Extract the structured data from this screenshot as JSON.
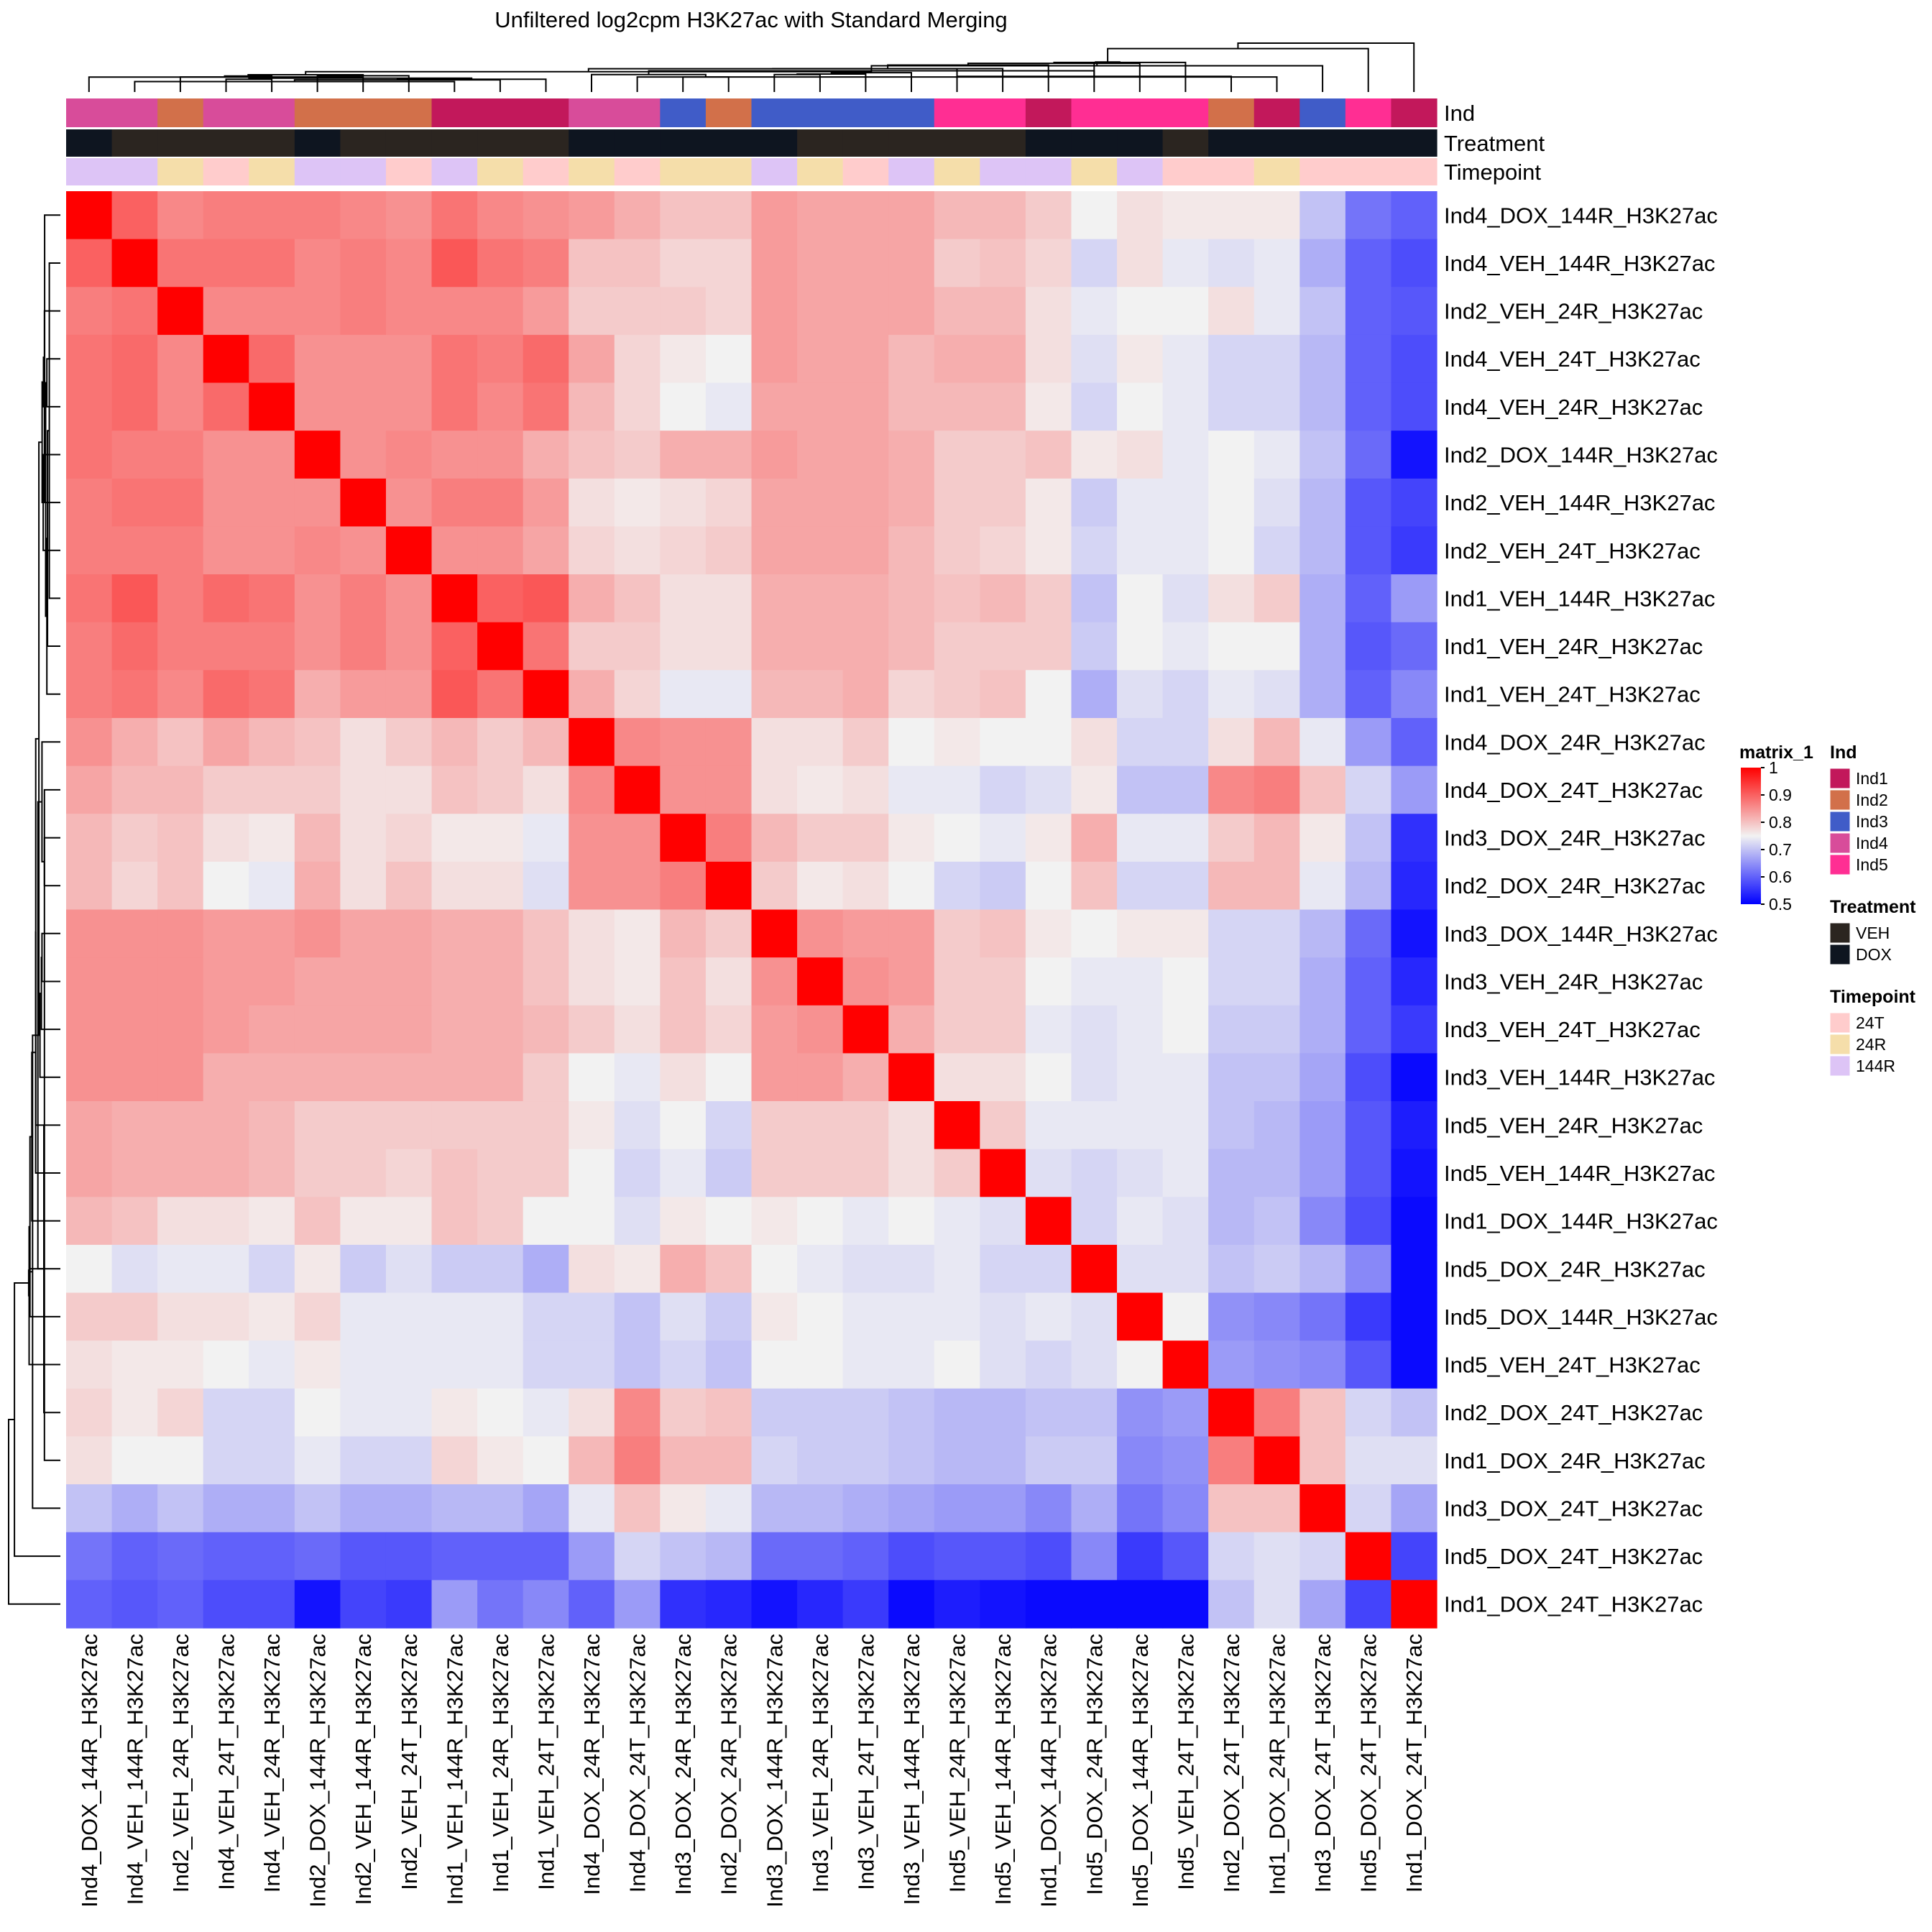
{
  "chart_data": {
    "type": "heatmap",
    "title": "Unfiltered log2cpm H3K27ac with Standard Merging",
    "labels": [
      "Ind4_DOX_144R_H3K27ac",
      "Ind4_VEH_144R_H3K27ac",
      "Ind2_VEH_24R_H3K27ac",
      "Ind4_VEH_24T_H3K27ac",
      "Ind4_VEH_24R_H3K27ac",
      "Ind2_DOX_144R_H3K27ac",
      "Ind2_VEH_144R_H3K27ac",
      "Ind2_VEH_24T_H3K27ac",
      "Ind1_VEH_144R_H3K27ac",
      "Ind1_VEH_24R_H3K27ac",
      "Ind1_VEH_24T_H3K27ac",
      "Ind4_DOX_24R_H3K27ac",
      "Ind4_DOX_24T_H3K27ac",
      "Ind3_DOX_24R_H3K27ac",
      "Ind2_DOX_24R_H3K27ac",
      "Ind3_DOX_144R_H3K27ac",
      "Ind3_VEH_24R_H3K27ac",
      "Ind3_VEH_24T_H3K27ac",
      "Ind3_VEH_144R_H3K27ac",
      "Ind5_VEH_24R_H3K27ac",
      "Ind5_VEH_144R_H3K27ac",
      "Ind1_DOX_144R_H3K27ac",
      "Ind5_DOX_24R_H3K27ac",
      "Ind5_DOX_144R_H3K27ac",
      "Ind5_VEH_24T_H3K27ac",
      "Ind2_DOX_24T_H3K27ac",
      "Ind1_DOX_24R_H3K27ac",
      "Ind3_DOX_24T_H3K27ac",
      "Ind5_DOX_24T_H3K27ac",
      "Ind1_DOX_24T_H3K27ac"
    ],
    "matrix": [
      [
        1.0,
        0.9,
        0.86,
        0.87,
        0.87,
        0.87,
        0.86,
        0.85,
        0.88,
        0.86,
        0.85,
        0.84,
        0.82,
        0.8,
        0.8,
        0.84,
        0.83,
        0.83,
        0.83,
        0.81,
        0.81,
        0.79,
        0.75,
        0.77,
        0.76,
        0.76,
        0.76,
        0.7,
        0.62,
        0.6
      ],
      [
        0.9,
        1.0,
        0.88,
        0.88,
        0.88,
        0.86,
        0.87,
        0.86,
        0.91,
        0.88,
        0.87,
        0.8,
        0.8,
        0.78,
        0.78,
        0.84,
        0.83,
        0.83,
        0.83,
        0.79,
        0.8,
        0.78,
        0.72,
        0.77,
        0.74,
        0.73,
        0.74,
        0.68,
        0.6,
        0.58
      ],
      [
        0.87,
        0.88,
        1.0,
        0.86,
        0.86,
        0.86,
        0.87,
        0.86,
        0.86,
        0.86,
        0.84,
        0.79,
        0.79,
        0.79,
        0.78,
        0.84,
        0.83,
        0.83,
        0.83,
        0.81,
        0.81,
        0.77,
        0.74,
        0.75,
        0.75,
        0.77,
        0.74,
        0.7,
        0.6,
        0.59
      ],
      [
        0.88,
        0.89,
        0.86,
        1.0,
        0.89,
        0.85,
        0.85,
        0.85,
        0.88,
        0.87,
        0.89,
        0.83,
        0.78,
        0.76,
        0.75,
        0.84,
        0.83,
        0.83,
        0.81,
        0.82,
        0.82,
        0.77,
        0.73,
        0.76,
        0.74,
        0.72,
        0.72,
        0.69,
        0.6,
        0.58
      ],
      [
        0.88,
        0.89,
        0.86,
        0.89,
        1.0,
        0.85,
        0.85,
        0.85,
        0.88,
        0.86,
        0.88,
        0.81,
        0.78,
        0.75,
        0.74,
        0.83,
        0.83,
        0.83,
        0.81,
        0.81,
        0.81,
        0.76,
        0.72,
        0.75,
        0.74,
        0.72,
        0.72,
        0.69,
        0.6,
        0.58
      ],
      [
        0.88,
        0.87,
        0.87,
        0.85,
        0.85,
        1.0,
        0.85,
        0.86,
        0.85,
        0.85,
        0.82,
        0.8,
        0.79,
        0.82,
        0.82,
        0.84,
        0.83,
        0.83,
        0.82,
        0.79,
        0.79,
        0.8,
        0.76,
        0.77,
        0.74,
        0.75,
        0.74,
        0.7,
        0.61,
        0.52
      ],
      [
        0.87,
        0.88,
        0.88,
        0.85,
        0.85,
        0.85,
        1.0,
        0.85,
        0.87,
        0.87,
        0.84,
        0.77,
        0.76,
        0.77,
        0.78,
        0.83,
        0.83,
        0.83,
        0.82,
        0.79,
        0.79,
        0.76,
        0.71,
        0.74,
        0.74,
        0.75,
        0.73,
        0.69,
        0.59,
        0.57
      ],
      [
        0.87,
        0.87,
        0.87,
        0.85,
        0.85,
        0.86,
        0.85,
        1.0,
        0.85,
        0.85,
        0.83,
        0.78,
        0.77,
        0.78,
        0.79,
        0.83,
        0.83,
        0.83,
        0.81,
        0.79,
        0.78,
        0.76,
        0.72,
        0.74,
        0.74,
        0.75,
        0.72,
        0.69,
        0.59,
        0.56
      ],
      [
        0.88,
        0.91,
        0.87,
        0.89,
        0.88,
        0.85,
        0.87,
        0.85,
        1.0,
        0.9,
        0.91,
        0.82,
        0.8,
        0.77,
        0.77,
        0.82,
        0.82,
        0.82,
        0.81,
        0.8,
        0.81,
        0.79,
        0.7,
        0.75,
        0.73,
        0.77,
        0.79,
        0.68,
        0.6,
        0.66
      ],
      [
        0.87,
        0.89,
        0.87,
        0.87,
        0.87,
        0.85,
        0.87,
        0.85,
        0.9,
        1.0,
        0.88,
        0.79,
        0.79,
        0.77,
        0.77,
        0.82,
        0.82,
        0.82,
        0.81,
        0.79,
        0.79,
        0.79,
        0.71,
        0.75,
        0.74,
        0.75,
        0.75,
        0.68,
        0.59,
        0.61
      ],
      [
        0.87,
        0.88,
        0.86,
        0.89,
        0.88,
        0.82,
        0.84,
        0.84,
        0.91,
        0.88,
        1.0,
        0.82,
        0.78,
        0.74,
        0.74,
        0.81,
        0.81,
        0.82,
        0.78,
        0.79,
        0.8,
        0.75,
        0.68,
        0.73,
        0.72,
        0.74,
        0.73,
        0.68,
        0.6,
        0.64
      ],
      [
        0.85,
        0.82,
        0.8,
        0.83,
        0.81,
        0.8,
        0.77,
        0.79,
        0.81,
        0.79,
        0.81,
        1.0,
        0.86,
        0.85,
        0.85,
        0.77,
        0.77,
        0.79,
        0.75,
        0.76,
        0.75,
        0.75,
        0.77,
        0.72,
        0.72,
        0.77,
        0.81,
        0.74,
        0.66,
        0.6
      ],
      [
        0.83,
        0.81,
        0.81,
        0.79,
        0.79,
        0.79,
        0.77,
        0.77,
        0.8,
        0.79,
        0.77,
        0.86,
        1.0,
        0.85,
        0.85,
        0.77,
        0.76,
        0.77,
        0.74,
        0.74,
        0.72,
        0.73,
        0.76,
        0.7,
        0.7,
        0.86,
        0.87,
        0.8,
        0.72,
        0.66
      ],
      [
        0.81,
        0.79,
        0.8,
        0.77,
        0.76,
        0.81,
        0.77,
        0.78,
        0.76,
        0.76,
        0.74,
        0.85,
        0.85,
        1.0,
        0.87,
        0.81,
        0.79,
        0.79,
        0.76,
        0.75,
        0.74,
        0.76,
        0.82,
        0.74,
        0.74,
        0.79,
        0.81,
        0.76,
        0.7,
        0.55
      ],
      [
        0.81,
        0.78,
        0.8,
        0.75,
        0.74,
        0.82,
        0.77,
        0.8,
        0.77,
        0.77,
        0.73,
        0.85,
        0.85,
        0.87,
        1.0,
        0.79,
        0.76,
        0.77,
        0.75,
        0.72,
        0.71,
        0.75,
        0.8,
        0.72,
        0.72,
        0.81,
        0.81,
        0.74,
        0.69,
        0.54
      ],
      [
        0.85,
        0.85,
        0.85,
        0.84,
        0.84,
        0.85,
        0.83,
        0.83,
        0.82,
        0.82,
        0.8,
        0.77,
        0.76,
        0.81,
        0.79,
        1.0,
        0.85,
        0.84,
        0.84,
        0.79,
        0.8,
        0.76,
        0.75,
        0.76,
        0.76,
        0.72,
        0.72,
        0.69,
        0.61,
        0.52
      ],
      [
        0.85,
        0.85,
        0.85,
        0.84,
        0.84,
        0.83,
        0.83,
        0.83,
        0.82,
        0.82,
        0.8,
        0.77,
        0.76,
        0.8,
        0.77,
        0.85,
        1.0,
        0.85,
        0.84,
        0.79,
        0.79,
        0.75,
        0.74,
        0.74,
        0.75,
        0.72,
        0.72,
        0.68,
        0.6,
        0.54
      ],
      [
        0.85,
        0.85,
        0.85,
        0.84,
        0.83,
        0.83,
        0.83,
        0.83,
        0.82,
        0.82,
        0.81,
        0.79,
        0.77,
        0.8,
        0.78,
        0.84,
        0.85,
        1.0,
        0.82,
        0.79,
        0.79,
        0.74,
        0.73,
        0.74,
        0.75,
        0.71,
        0.71,
        0.68,
        0.6,
        0.56
      ],
      [
        0.85,
        0.85,
        0.85,
        0.82,
        0.82,
        0.82,
        0.82,
        0.82,
        0.82,
        0.82,
        0.79,
        0.75,
        0.74,
        0.77,
        0.75,
        0.84,
        0.84,
        0.82,
        1.0,
        0.77,
        0.77,
        0.75,
        0.73,
        0.74,
        0.74,
        0.7,
        0.7,
        0.67,
        0.58,
        0.51
      ],
      [
        0.83,
        0.82,
        0.82,
        0.82,
        0.81,
        0.79,
        0.79,
        0.79,
        0.79,
        0.79,
        0.79,
        0.76,
        0.73,
        0.75,
        0.72,
        0.79,
        0.79,
        0.79,
        0.77,
        1.0,
        0.79,
        0.74,
        0.74,
        0.74,
        0.74,
        0.7,
        0.69,
        0.66,
        0.59,
        0.53
      ],
      [
        0.83,
        0.82,
        0.82,
        0.82,
        0.81,
        0.79,
        0.79,
        0.78,
        0.8,
        0.79,
        0.79,
        0.75,
        0.72,
        0.74,
        0.71,
        0.79,
        0.79,
        0.79,
        0.77,
        0.79,
        1.0,
        0.73,
        0.72,
        0.73,
        0.74,
        0.69,
        0.69,
        0.66,
        0.59,
        0.52
      ],
      [
        0.81,
        0.8,
        0.77,
        0.77,
        0.76,
        0.8,
        0.76,
        0.76,
        0.8,
        0.79,
        0.75,
        0.75,
        0.73,
        0.76,
        0.75,
        0.76,
        0.75,
        0.74,
        0.75,
        0.74,
        0.73,
        1.0,
        0.72,
        0.74,
        0.73,
        0.69,
        0.7,
        0.64,
        0.58,
        0.51
      ],
      [
        0.75,
        0.73,
        0.74,
        0.74,
        0.72,
        0.76,
        0.71,
        0.73,
        0.71,
        0.71,
        0.68,
        0.77,
        0.76,
        0.82,
        0.8,
        0.75,
        0.74,
        0.73,
        0.73,
        0.74,
        0.72,
        0.72,
        1.0,
        0.73,
        0.73,
        0.7,
        0.71,
        0.69,
        0.64,
        0.51
      ],
      [
        0.79,
        0.79,
        0.77,
        0.77,
        0.76,
        0.78,
        0.74,
        0.74,
        0.74,
        0.74,
        0.72,
        0.72,
        0.7,
        0.73,
        0.71,
        0.76,
        0.75,
        0.74,
        0.74,
        0.74,
        0.73,
        0.74,
        0.73,
        1.0,
        0.75,
        0.65,
        0.64,
        0.62,
        0.56,
        0.51
      ],
      [
        0.77,
        0.76,
        0.76,
        0.75,
        0.74,
        0.76,
        0.74,
        0.74,
        0.74,
        0.74,
        0.72,
        0.72,
        0.7,
        0.72,
        0.7,
        0.75,
        0.75,
        0.74,
        0.74,
        0.75,
        0.73,
        0.72,
        0.73,
        0.75,
        1.0,
        0.66,
        0.65,
        0.64,
        0.59,
        0.51
      ],
      [
        0.78,
        0.76,
        0.78,
        0.72,
        0.72,
        0.75,
        0.74,
        0.74,
        0.76,
        0.75,
        0.74,
        0.77,
        0.86,
        0.79,
        0.8,
        0.71,
        0.71,
        0.71,
        0.7,
        0.69,
        0.69,
        0.7,
        0.7,
        0.65,
        0.66,
        1.0,
        0.87,
        0.8,
        0.72,
        0.7
      ],
      [
        0.77,
        0.75,
        0.75,
        0.72,
        0.72,
        0.74,
        0.72,
        0.72,
        0.78,
        0.76,
        0.75,
        0.81,
        0.87,
        0.81,
        0.81,
        0.72,
        0.71,
        0.71,
        0.7,
        0.69,
        0.69,
        0.71,
        0.71,
        0.64,
        0.65,
        0.87,
        1.0,
        0.8,
        0.73,
        0.73
      ],
      [
        0.7,
        0.68,
        0.7,
        0.68,
        0.68,
        0.7,
        0.68,
        0.68,
        0.69,
        0.69,
        0.67,
        0.74,
        0.8,
        0.76,
        0.74,
        0.69,
        0.69,
        0.68,
        0.67,
        0.66,
        0.66,
        0.64,
        0.68,
        0.62,
        0.64,
        0.8,
        0.8,
        1.0,
        0.72,
        0.67
      ],
      [
        0.62,
        0.6,
        0.61,
        0.6,
        0.6,
        0.61,
        0.59,
        0.59,
        0.6,
        0.6,
        0.6,
        0.66,
        0.72,
        0.7,
        0.69,
        0.61,
        0.61,
        0.6,
        0.58,
        0.59,
        0.59,
        0.58,
        0.64,
        0.56,
        0.59,
        0.72,
        0.73,
        0.72,
        1.0,
        0.57
      ],
      [
        0.6,
        0.59,
        0.6,
        0.58,
        0.58,
        0.52,
        0.57,
        0.56,
        0.66,
        0.62,
        0.64,
        0.6,
        0.66,
        0.55,
        0.54,
        0.52,
        0.54,
        0.56,
        0.51,
        0.53,
        0.52,
        0.51,
        0.51,
        0.51,
        0.51,
        0.7,
        0.73,
        0.67,
        0.57,
        1.0
      ]
    ],
    "color_scale": {
      "min": 0.5,
      "mid": 0.75,
      "max": 1,
      "low_color": "#0000FF",
      "mid_color": "#F2F2F2",
      "high_color": "#FF0000"
    },
    "annotations": {
      "Ind": [
        "Ind4",
        "Ind4",
        "Ind2",
        "Ind4",
        "Ind4",
        "Ind2",
        "Ind2",
        "Ind2",
        "Ind1",
        "Ind1",
        "Ind1",
        "Ind4",
        "Ind4",
        "Ind3",
        "Ind2",
        "Ind3",
        "Ind3",
        "Ind3",
        "Ind3",
        "Ind5",
        "Ind5",
        "Ind1",
        "Ind5",
        "Ind5",
        "Ind5",
        "Ind2",
        "Ind1",
        "Ind3",
        "Ind5",
        "Ind1"
      ],
      "Treatment": [
        "DOX",
        "VEH",
        "VEH",
        "VEH",
        "VEH",
        "DOX",
        "VEH",
        "VEH",
        "VEH",
        "VEH",
        "VEH",
        "DOX",
        "DOX",
        "DOX",
        "DOX",
        "DOX",
        "VEH",
        "VEH",
        "VEH",
        "VEH",
        "VEH",
        "DOX",
        "DOX",
        "DOX",
        "VEH",
        "DOX",
        "DOX",
        "DOX",
        "DOX",
        "DOX"
      ],
      "Timepoint": [
        "144R",
        "144R",
        "24R",
        "24T",
        "24R",
        "144R",
        "144R",
        "24T",
        "144R",
        "24R",
        "24T",
        "24R",
        "24T",
        "24R",
        "24R",
        "144R",
        "24R",
        "24T",
        "144R",
        "24R",
        "144R",
        "144R",
        "24R",
        "144R",
        "24T",
        "24T",
        "24R",
        "24T",
        "24T",
        "24T"
      ]
    },
    "annotation_names": [
      "Ind",
      "Treatment",
      "Timepoint"
    ],
    "legend": {
      "matrix_title": "matrix_1",
      "matrix_ticks": [
        "1",
        "0.9",
        "0.8",
        "0.7",
        "0.6",
        "0.5"
      ],
      "groups": [
        {
          "title": "Ind",
          "entries": [
            {
              "label": "Ind1",
              "color": "#C2185B"
            },
            {
              "label": "Ind2",
              "color": "#D2704A"
            },
            {
              "label": "Ind3",
              "color": "#405CC8"
            },
            {
              "label": "Ind4",
              "color": "#D84C9A"
            },
            {
              "label": "Ind5",
              "color": "#FF2E93"
            }
          ]
        },
        {
          "title": "Treatment",
          "entries": [
            {
              "label": "VEH",
              "color": "#2B2520"
            },
            {
              "label": "DOX",
              "color": "#0E1520"
            }
          ]
        },
        {
          "title": "Timepoint",
          "entries": [
            {
              "label": "24T",
              "color": "#FFCCCC"
            },
            {
              "label": "24R",
              "color": "#F5DEAA"
            },
            {
              "label": "144R",
              "color": "#DDC4F6"
            }
          ]
        }
      ]
    },
    "legend_position": "right"
  }
}
